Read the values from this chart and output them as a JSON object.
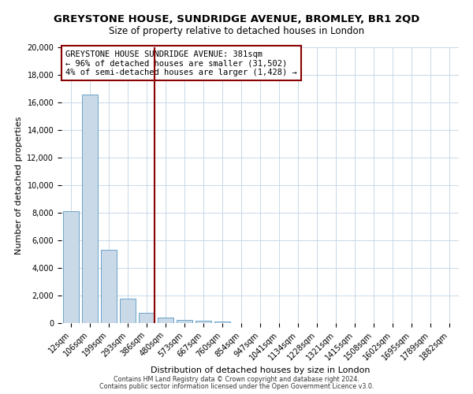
{
  "title": "GREYSTONE HOUSE, SUNDRIDGE AVENUE, BROMLEY, BR1 2QD",
  "subtitle": "Size of property relative to detached houses in London",
  "xlabel": "Distribution of detached houses by size in London",
  "ylabel": "Number of detached properties",
  "categories": [
    "12sqm",
    "106sqm",
    "199sqm",
    "293sqm",
    "386sqm",
    "480sqm",
    "573sqm",
    "667sqm",
    "760sqm",
    "854sqm",
    "947sqm",
    "1041sqm",
    "1134sqm",
    "1228sqm",
    "1321sqm",
    "1415sqm",
    "1508sqm",
    "1602sqm",
    "1695sqm",
    "1789sqm",
    "1882sqm"
  ],
  "values": [
    8100,
    16600,
    5300,
    1800,
    750,
    400,
    250,
    150,
    100,
    0,
    0,
    0,
    0,
    0,
    0,
    0,
    0,
    0,
    0,
    0,
    0
  ],
  "bar_color": "#c9d9e8",
  "bar_edge_color": "#6aa3c8",
  "vline_x_index": 4,
  "vline_color": "#8b0000",
  "annotation_text_line1": "GREYSTONE HOUSE SUNDRIDGE AVENUE: 381sqm",
  "annotation_text_line2": "← 96% of detached houses are smaller (31,502)",
  "annotation_text_line3": "4% of semi-detached houses are larger (1,428) →",
  "annotation_box_color": "#8b0000",
  "ylim": [
    0,
    20000
  ],
  "yticks": [
    0,
    2000,
    4000,
    6000,
    8000,
    10000,
    12000,
    14000,
    16000,
    18000,
    20000
  ],
  "footer_line1": "Contains HM Land Registry data © Crown copyright and database right 2024.",
  "footer_line2": "Contains public sector information licensed under the Open Government Licence v3.0.",
  "bg_color": "#ffffff",
  "grid_color": "#c8d8e8",
  "title_fontsize": 9.5,
  "subtitle_fontsize": 8.5,
  "axis_label_fontsize": 8,
  "tick_fontsize": 7,
  "annotation_fontsize": 7.5,
  "footer_fontsize": 5.8
}
